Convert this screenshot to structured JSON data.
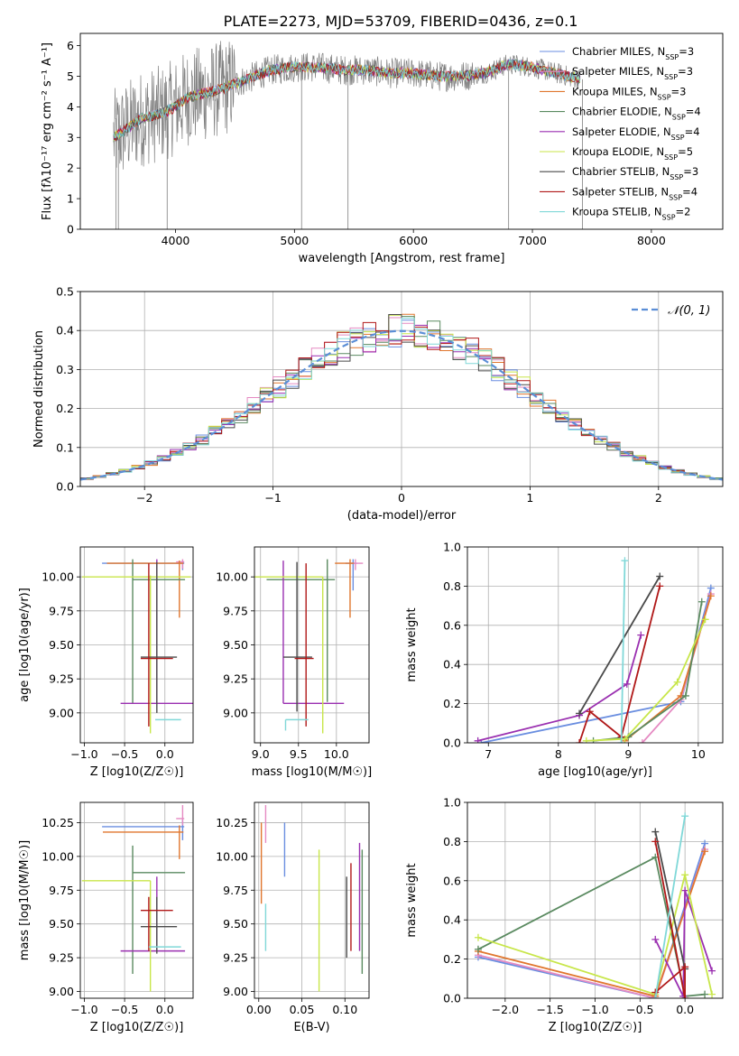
{
  "title": "PLATE=2273, MJD=53709, FIBERID=0436, z=0.1",
  "colors": {
    "Chabrier MILES": "#6a8ee0",
    "Salpeter MILES": "#e58ac2",
    "Kroupa MILES": "#e0762e",
    "Chabrier ELODIE": "#5a8a60",
    "Salpeter ELODIE": "#9a2fb0",
    "Kroupa ELODIE": "#c8e64a",
    "Chabrier STELIB": "#4a4a4a",
    "Salpeter STELIB": "#b01818",
    "Kroupa STELIB": "#80d8d8",
    "gaussian": "#5b8ed6",
    "spectrum_gray": "#808080",
    "grid": "#b0b0b0"
  },
  "chart_data": [
    {
      "id": "spectrum",
      "type": "line",
      "xlabel": "wavelength [Angstrom, rest frame]",
      "ylabel": "Flux [fλ10⁻¹⁷ erg cm⁻² s⁻¹ A⁻¹]",
      "xlim": [
        3200,
        8600
      ],
      "ylim": [
        0,
        6.4
      ],
      "xticks": [
        4000,
        5000,
        6000,
        7000,
        8000
      ],
      "yticks": [
        0,
        1,
        2,
        3,
        4,
        5,
        6
      ],
      "grid": false,
      "legend_position": "right",
      "series": [
        {
          "name": "Chabrier MILES, NSSP=3",
          "color": "#6a8ee0"
        },
        {
          "name": "Salpeter MILES, NSSP=3",
          "color": "#e58ac2"
        },
        {
          "name": "Kroupa MILES, NSSP=3",
          "color": "#e0762e"
        },
        {
          "name": "Chabrier ELODIE, NSSP=4",
          "color": "#5a8a60"
        },
        {
          "name": "Salpeter ELODIE, NSSP=4",
          "color": "#9a2fb0"
        },
        {
          "name": "Kroupa ELODIE, NSSP=5",
          "color": "#c8e64a"
        },
        {
          "name": "Chabrier STELIB, NSSP=3",
          "color": "#4a4a4a"
        },
        {
          "name": "Salpeter STELIB, NSSP=4",
          "color": "#b01818"
        },
        {
          "name": "Kroupa STELIB, NSSP=2",
          "color": "#80d8d8"
        }
      ],
      "continuum": {
        "x": [
          3480,
          3600,
          3700,
          3800,
          3900,
          4000,
          4100,
          4200,
          4400,
          4600,
          4800,
          5000,
          5200,
          5400,
          5600,
          5800,
          6000,
          6200,
          6400,
          6600,
          6800,
          7000,
          7200,
          7400
        ],
        "y": [
          3.0,
          3.3,
          3.6,
          3.7,
          3.8,
          4.0,
          4.3,
          4.4,
          4.6,
          4.9,
          5.2,
          5.3,
          5.3,
          5.2,
          5.2,
          5.1,
          5.1,
          5.0,
          5.0,
          5.1,
          5.4,
          5.3,
          5.1,
          4.9
        ]
      }
    },
    {
      "id": "residuals",
      "type": "histogram",
      "xlabel": "(data-model)/error",
      "ylabel": "Normed distribution",
      "xlim": [
        -2.5,
        2.5
      ],
      "ylim": [
        0,
        0.5
      ],
      "xticks": [
        -2,
        -1,
        0,
        1,
        2
      ],
      "yticks": [
        0.0,
        0.1,
        0.2,
        0.3,
        0.4,
        0.5
      ],
      "grid": true,
      "legend": "𝒩(0, 1)",
      "legend_position": "top-right",
      "bin_width": 0.1
    },
    {
      "id": "age_vs_Z",
      "type": "errorbar",
      "xlabel": "Z [log10(Z/Z☉)]",
      "ylabel": "age  [log10(age/yr)]",
      "xlim": [
        -1.05,
        0.35
      ],
      "ylim": [
        8.78,
        10.22
      ],
      "xticks": [
        -1.0,
        -0.5,
        0.0
      ],
      "yticks": [
        9.0,
        9.25,
        9.5,
        9.75,
        10.0
      ],
      "grid": true,
      "points": [
        {
          "color": "#6a8ee0",
          "x": 0.22,
          "xerr": [
            1.0,
            0.02
          ],
          "y": 10.1,
          "yerr": [
            0.05,
            0.02
          ]
        },
        {
          "color": "#e58ac2",
          "x": 0.22,
          "xerr": [
            0.08,
            0.02
          ],
          "y": 10.11,
          "yerr": [
            0.05,
            0.02
          ]
        },
        {
          "color": "#e0762e",
          "x": 0.18,
          "xerr": [
            0.9,
            0.05
          ],
          "y": 10.1,
          "yerr": [
            0.4,
            0.02
          ]
        },
        {
          "color": "#5a8a60",
          "x": -0.4,
          "xerr": [
            0.0,
            0.65
          ],
          "y": 9.98,
          "yerr": [
            0.91,
            0.15
          ]
        },
        {
          "color": "#9a2fb0",
          "x": -0.1,
          "xerr": [
            0.45,
            0.45
          ],
          "y": 9.07,
          "yerr": [
            0.0,
            1.06
          ]
        },
        {
          "color": "#c8e64a",
          "x": -0.18,
          "xerr": [
            0.85,
            0.5
          ],
          "y": 10.0,
          "yerr": [
            1.15,
            0.01
          ]
        },
        {
          "color": "#4a4a4a",
          "x": -0.1,
          "xerr": [
            0.2,
            0.25
          ],
          "y": 9.41,
          "yerr": [
            0.41,
            0.7
          ]
        },
        {
          "color": "#b01818",
          "x": -0.2,
          "xerr": [
            0.1,
            0.3
          ],
          "y": 9.4,
          "yerr": [
            0.5,
            0.7
          ]
        },
        {
          "color": "#80d8d8",
          "x": 0.0,
          "xerr": [
            0.12,
            0.2
          ],
          "y": 8.95,
          "yerr": [
            0.0,
            0.0
          ]
        }
      ]
    },
    {
      "id": "age_vs_mass",
      "type": "errorbar",
      "xlabel": "mass [log10(M/M☉)]",
      "ylabel": "",
      "xlim": [
        8.92,
        10.43
      ],
      "ylim": [
        8.78,
        10.22
      ],
      "xticks": [
        9.0,
        9.5,
        10.0
      ],
      "yticks": [
        9.0,
        9.25,
        9.5,
        9.75,
        10.0
      ],
      "grid": true,
      "points": [
        {
          "color": "#6a8ee0",
          "x": 10.22,
          "xerr": [
            0.1,
            0.05
          ],
          "y": 10.1,
          "yerr": [
            0.2,
            0.03
          ]
        },
        {
          "color": "#e58ac2",
          "x": 10.25,
          "xerr": [
            0.05,
            0.1
          ],
          "y": 10.1,
          "yerr": [
            0.05,
            0.03
          ]
        },
        {
          "color": "#e0762e",
          "x": 10.18,
          "xerr": [
            0.2,
            0.05
          ],
          "y": 10.1,
          "yerr": [
            0.4,
            0.03
          ]
        },
        {
          "color": "#5a8a60",
          "x": 9.88,
          "xerr": [
            0.8,
            0.1
          ],
          "y": 9.98,
          "yerr": [
            0.9,
            0.15
          ]
        },
        {
          "color": "#9a2fb0",
          "x": 9.3,
          "xerr": [
            0.0,
            0.8
          ],
          "y": 9.07,
          "yerr": [
            0.0,
            1.05
          ]
        },
        {
          "color": "#c8e64a",
          "x": 9.82,
          "xerr": [
            0.9,
            0.0
          ],
          "y": 10.0,
          "yerr": [
            1.15,
            0.0
          ]
        },
        {
          "color": "#4a4a4a",
          "x": 9.48,
          "xerr": [
            0.18,
            0.2
          ],
          "y": 9.41,
          "yerr": [
            0.4,
            0.7
          ]
        },
        {
          "color": "#b01818",
          "x": 9.6,
          "xerr": [
            0.15,
            0.1
          ],
          "y": 9.4,
          "yerr": [
            0.5,
            0.7
          ]
        },
        {
          "color": "#80d8d8",
          "x": 9.33,
          "xerr": [
            0.0,
            0.3
          ],
          "y": 8.95,
          "yerr": [
            0.08,
            0.0
          ]
        }
      ]
    },
    {
      "id": "weight_vs_age",
      "type": "line",
      "xlabel": "age  [log10(age/yr)]",
      "ylabel": "mass weight",
      "xlim": [
        6.7,
        10.35
      ],
      "ylim": [
        0,
        1
      ],
      "xticks": [
        7,
        8,
        9,
        10
      ],
      "yticks": [
        0.0,
        0.2,
        0.4,
        0.6,
        0.8,
        1.0
      ],
      "grid": true,
      "series": [
        {
          "name": "Chabrier MILES",
          "color": "#6a8ee0",
          "x": [
            6.9,
            9.75,
            10.18
          ],
          "y": [
            0.0,
            0.21,
            0.79
          ]
        },
        {
          "name": "Salpeter MILES",
          "color": "#e58ac2",
          "x": [
            9.2,
            9.75,
            10.18
          ],
          "y": [
            0.0,
            0.22,
            0.76
          ]
        },
        {
          "name": "Kroupa MILES",
          "color": "#e0762e",
          "x": [
            8.95,
            9.75,
            10.18
          ],
          "y": [
            0.01,
            0.24,
            0.75
          ]
        },
        {
          "name": "Chabrier ELODIE",
          "color": "#5a8a60",
          "x": [
            8.5,
            9.0,
            9.82,
            10.05
          ],
          "y": [
            0.01,
            0.03,
            0.24,
            0.72
          ]
        },
        {
          "name": "Salpeter ELODIE",
          "color": "#9a2fb0",
          "x": [
            6.85,
            8.3,
            8.98,
            9.18
          ],
          "y": [
            0.01,
            0.14,
            0.3,
            0.55
          ]
        },
        {
          "name": "Kroupa ELODIE",
          "color": "#c8e64a",
          "x": [
            8.4,
            8.95,
            9.7,
            10.1
          ],
          "y": [
            0.01,
            0.02,
            0.31,
            0.63
          ]
        },
        {
          "name": "Chabrier STELIB",
          "color": "#4a4a4a",
          "x": [
            8.3,
            9.45
          ],
          "y": [
            0.15,
            0.85
          ]
        },
        {
          "name": "Salpeter STELIB",
          "color": "#b01818",
          "x": [
            8.3,
            8.45,
            8.9,
            9.45
          ],
          "y": [
            0.0,
            0.16,
            0.03,
            0.8
          ]
        },
        {
          "name": "Kroupa STELIB",
          "color": "#80d8d8",
          "x": [
            8.9,
            8.95
          ],
          "y": [
            0.0,
            0.93
          ]
        }
      ]
    },
    {
      "id": "mass_vs_Z",
      "type": "errorbar",
      "xlabel": "Z [log10(Z/Z☉)]",
      "ylabel": "mass [log10(M/M☉)]",
      "xlim": [
        -1.05,
        0.35
      ],
      "ylim": [
        8.95,
        10.4
      ],
      "xticks": [
        -1.0,
        -0.5,
        0.0
      ],
      "yticks": [
        9.0,
        9.25,
        9.5,
        9.75,
        10.0,
        10.25
      ],
      "grid": true,
      "points": [
        {
          "color": "#6a8ee0",
          "x": 0.22,
          "xerr": [
            1.0,
            0.02
          ],
          "y": 10.22,
          "yerr": [
            0.1,
            0.05
          ]
        },
        {
          "color": "#e58ac2",
          "x": 0.22,
          "xerr": [
            0.08,
            0.02
          ],
          "y": 10.28,
          "yerr": [
            0.05,
            0.1
          ]
        },
        {
          "color": "#e0762e",
          "x": 0.18,
          "xerr": [
            0.95,
            0.05
          ],
          "y": 10.18,
          "yerr": [
            0.2,
            0.05
          ]
        },
        {
          "color": "#5a8a60",
          "x": -0.4,
          "xerr": [
            0.0,
            0.65
          ],
          "y": 9.88,
          "yerr": [
            0.75,
            0.2
          ]
        },
        {
          "color": "#9a2fb0",
          "x": -0.1,
          "xerr": [
            0.45,
            0.35
          ],
          "y": 9.3,
          "yerr": [
            0.0,
            0.55
          ]
        },
        {
          "color": "#c8e64a",
          "x": -0.18,
          "xerr": [
            0.85,
            0.0
          ],
          "y": 9.82,
          "yerr": [
            0.82,
            0.0
          ]
        },
        {
          "color": "#4a4a4a",
          "x": -0.1,
          "xerr": [
            0.2,
            0.25
          ],
          "y": 9.48,
          "yerr": [
            0.2,
            0.22
          ]
        },
        {
          "color": "#b01818",
          "x": -0.2,
          "xerr": [
            0.1,
            0.3
          ],
          "y": 9.6,
          "yerr": [
            0.3,
            0.1
          ]
        },
        {
          "color": "#80d8d8",
          "x": 0.0,
          "xerr": [
            0.2,
            0.2
          ],
          "y": 9.33,
          "yerr": [
            0.0,
            0.0
          ]
        }
      ]
    },
    {
      "id": "mass_vs_ebv",
      "type": "errorbar",
      "xlabel": "E(B-V)",
      "ylabel": "",
      "xlim": [
        -0.005,
        0.128
      ],
      "ylim": [
        8.95,
        10.4
      ],
      "xticks": [
        0.0,
        0.05,
        0.1
      ],
      "yticks": [
        9.0,
        9.25,
        9.5,
        9.75,
        10.0,
        10.25
      ],
      "grid": true,
      "points": [
        {
          "color": "#6a8ee0",
          "x": 0.03,
          "xerr": [
            0,
            0
          ],
          "y": 10.05,
          "yerr": [
            0.2,
            0.2
          ]
        },
        {
          "color": "#e58ac2",
          "x": 0.008,
          "xerr": [
            0,
            0
          ],
          "y": 10.2,
          "yerr": [
            0.1,
            0.18
          ]
        },
        {
          "color": "#e0762e",
          "x": 0.003,
          "xerr": [
            0,
            0
          ],
          "y": 9.95,
          "yerr": [
            0.3,
            0.3
          ]
        },
        {
          "color": "#5a8a60",
          "x": 0.12,
          "xerr": [
            0,
            0
          ],
          "y": 9.55,
          "yerr": [
            0.42,
            0.5
          ]
        },
        {
          "color": "#9a2fb0",
          "x": 0.117,
          "xerr": [
            0,
            0
          ],
          "y": 9.65,
          "yerr": [
            0.35,
            0.45
          ]
        },
        {
          "color": "#c8e64a",
          "x": 0.07,
          "xerr": [
            0,
            0
          ],
          "y": 9.55,
          "yerr": [
            0.55,
            0.5
          ]
        },
        {
          "color": "#4a4a4a",
          "x": 0.102,
          "xerr": [
            0,
            0
          ],
          "y": 9.55,
          "yerr": [
            0.3,
            0.3
          ]
        },
        {
          "color": "#b01818",
          "x": 0.107,
          "xerr": [
            0,
            0
          ],
          "y": 9.6,
          "yerr": [
            0.3,
            0.35
          ]
        },
        {
          "color": "#80d8d8",
          "x": 0.008,
          "xerr": [
            0,
            0
          ],
          "y": 9.5,
          "yerr": [
            0.2,
            0.15
          ]
        }
      ]
    },
    {
      "id": "weight_vs_Z",
      "type": "line",
      "xlabel": "Z [log10(Z/Z☉)]",
      "ylabel": "mass weight",
      "xlim": [
        -2.42,
        0.42
      ],
      "ylim": [
        0,
        1
      ],
      "xticks": [
        -2.0,
        -1.5,
        -1.0,
        -0.5,
        0.0
      ],
      "yticks": [
        0.0,
        0.2,
        0.4,
        0.6,
        0.8,
        1.0
      ],
      "grid": true,
      "series": [
        {
          "name": "Chabrier MILES",
          "color": "#6a8ee0",
          "x": [
            -2.3,
            -0.33,
            0.22
          ],
          "y": [
            0.21,
            0.0,
            0.79
          ]
        },
        {
          "name": "Salpeter MILES",
          "color": "#e58ac2",
          "x": [
            -2.3,
            -0.33,
            0.22
          ],
          "y": [
            0.22,
            0.0,
            0.76
          ]
        },
        {
          "name": "Kroupa MILES",
          "color": "#e0762e",
          "x": [
            -2.3,
            -0.33,
            0.22
          ],
          "y": [
            0.24,
            0.01,
            0.75
          ]
        },
        {
          "name": "Chabrier ELODIE",
          "color": "#5a8a60",
          "x": [
            -2.3,
            -0.33,
            0.0,
            0.22
          ],
          "y": [
            0.25,
            0.72,
            0.01,
            0.02
          ]
        },
        {
          "name": "Salpeter ELODIE",
          "color": "#9a2fb0",
          "x": [
            -0.33,
            -0.02,
            0.0,
            0.3
          ],
          "y": [
            0.3,
            0.01,
            0.55,
            0.14
          ]
        },
        {
          "name": "Kroupa ELODIE",
          "color": "#c8e64a",
          "x": [
            -2.3,
            -0.33,
            0.0,
            0.3
          ],
          "y": [
            0.31,
            0.02,
            0.63,
            0.02
          ]
        },
        {
          "name": "Chabrier STELIB",
          "color": "#4a4a4a",
          "x": [
            -0.33,
            0.0
          ],
          "y": [
            0.85,
            0.15
          ]
        },
        {
          "name": "Salpeter STELIB",
          "color": "#b01818",
          "x": [
            -0.33,
            0.0,
            0.0,
            -0.33
          ],
          "y": [
            0.03,
            0.16,
            0.0,
            0.8
          ]
        },
        {
          "name": "Kroupa STELIB",
          "color": "#80d8d8",
          "x": [
            -0.33,
            0.0
          ],
          "y": [
            0.0,
            0.93
          ]
        }
      ]
    }
  ]
}
